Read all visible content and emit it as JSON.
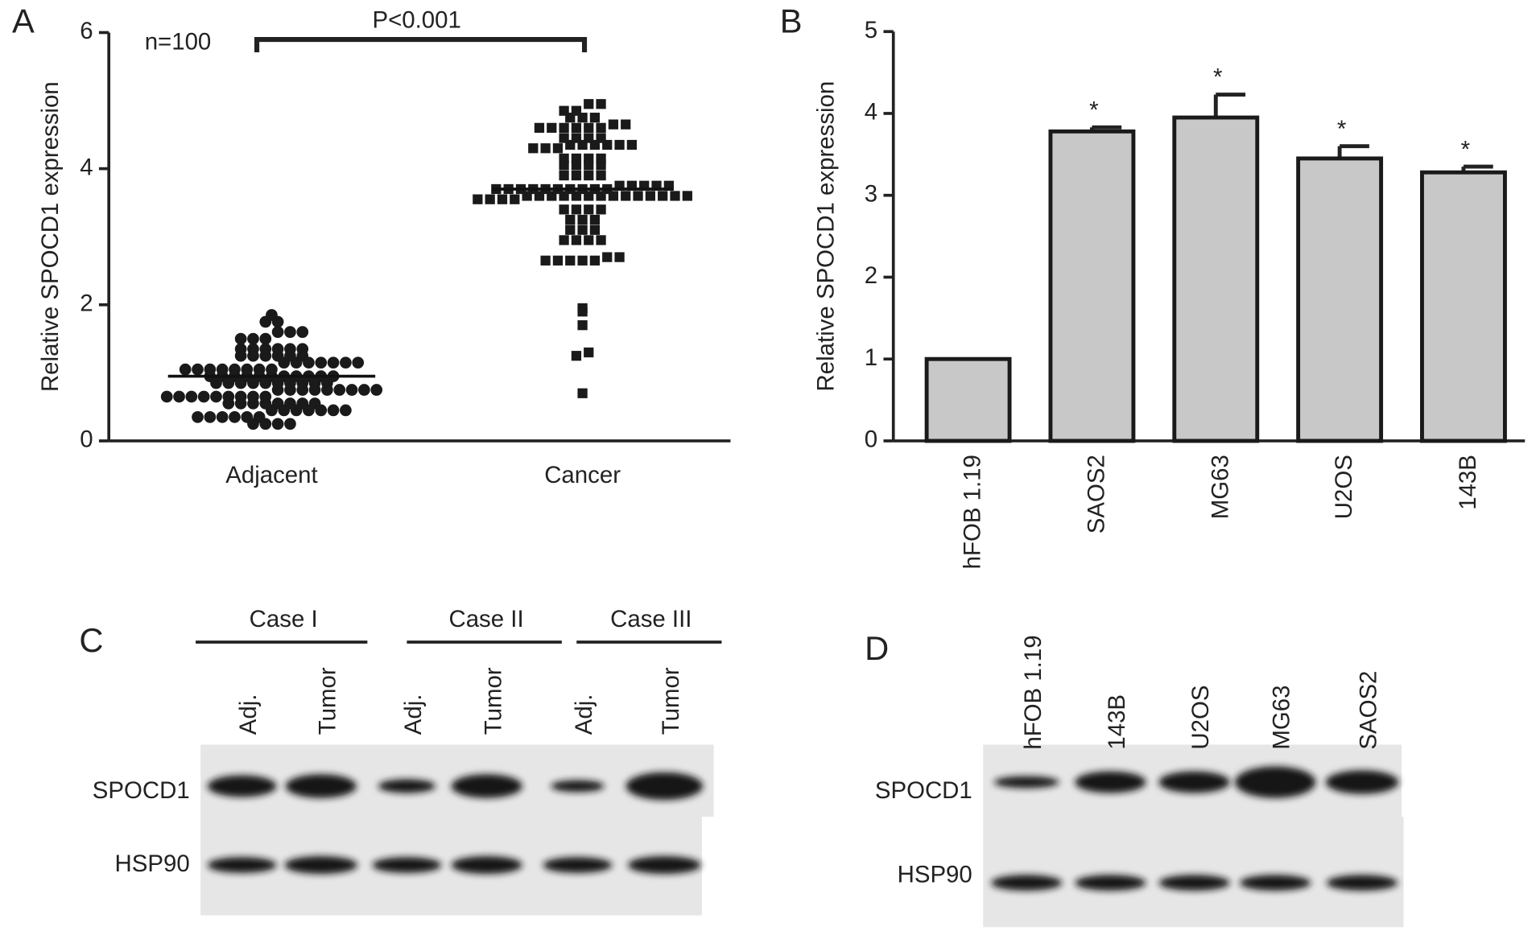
{
  "chart_data": [
    {
      "type": "dotplot",
      "panel": "A",
      "ylabel": "Relative SPOCD1 expression",
      "categories": [
        "Adjacent",
        "Cancer"
      ],
      "markers": [
        "circle",
        "square"
      ],
      "color": "#1a1a1a",
      "values": [
        [
          0.25,
          0.25,
          0.25,
          0.25,
          0.35,
          0.35,
          0.35,
          0.35,
          0.35,
          0.35,
          0.45,
          0.45,
          0.45,
          0.45,
          0.45,
          0.45,
          0.45,
          0.55,
          0.55,
          0.55,
          0.55,
          0.55,
          0.55,
          0.55,
          0.55,
          0.65,
          0.65,
          0.65,
          0.65,
          0.65,
          0.65,
          0.65,
          0.65,
          0.65,
          0.75,
          0.75,
          0.75,
          0.75,
          0.75,
          0.75,
          0.75,
          0.75,
          0.75,
          0.85,
          0.85,
          0.85,
          0.85,
          0.85,
          0.85,
          0.85,
          0.85,
          0.85,
          0.85,
          0.95,
          0.95,
          0.95,
          0.95,
          0.95,
          0.95,
          0.95,
          0.95,
          0.95,
          0.95,
          0.95,
          1.05,
          1.05,
          1.05,
          1.05,
          1.05,
          1.05,
          1.05,
          1.05,
          1.15,
          1.15,
          1.15,
          1.15,
          1.15,
          1.15,
          1.15,
          1.25,
          1.25,
          1.25,
          1.25,
          1.25,
          1.25,
          1.35,
          1.35,
          1.35,
          1.35,
          1.35,
          1.35,
          1.5,
          1.5,
          1.5,
          1.6,
          1.6,
          1.6,
          1.75,
          1.75,
          1.85
        ],
        [
          0.7,
          1.25,
          1.3,
          1.7,
          1.9,
          1.95,
          2.65,
          2.65,
          2.65,
          2.65,
          2.65,
          2.7,
          2.7,
          2.95,
          2.95,
          2.95,
          2.95,
          3.1,
          3.1,
          3.1,
          3.25,
          3.25,
          3.25,
          3.4,
          3.4,
          3.4,
          3.4,
          3.55,
          3.55,
          3.55,
          3.55,
          3.6,
          3.6,
          3.6,
          3.6,
          3.6,
          3.6,
          3.6,
          3.6,
          3.6,
          3.6,
          3.6,
          3.6,
          3.6,
          3.6,
          3.7,
          3.7,
          3.7,
          3.7,
          3.7,
          3.7,
          3.7,
          3.7,
          3.7,
          3.7,
          3.75,
          3.75,
          3.75,
          3.75,
          3.75,
          3.9,
          3.9,
          3.9,
          3.9,
          4.05,
          4.05,
          4.05,
          4.05,
          4.15,
          4.15,
          4.15,
          4.15,
          4.3,
          4.3,
          4.3,
          4.35,
          4.35,
          4.35,
          4.35,
          4.35,
          4.35,
          4.45,
          4.45,
          4.45,
          4.45,
          4.6,
          4.6,
          4.6,
          4.6,
          4.6,
          4.6,
          4.65,
          4.65,
          4.75,
          4.75,
          4.75,
          4.85,
          4.85,
          4.95,
          4.95
        ]
      ],
      "means": [
        0.95,
        3.7
      ],
      "annotation": "n=100",
      "bracket_label": "P<0.001",
      "ylim": [
        0,
        6
      ],
      "yticks": [
        0,
        2,
        4,
        6
      ]
    },
    {
      "type": "bar",
      "panel": "B",
      "ylabel": "Relative SPOCD1 expression",
      "categories": [
        "hFOB 1.19",
        "SAOS2",
        "MG63",
        "U2OS",
        "143B"
      ],
      "values": [
        1,
        3.78,
        3.95,
        3.45,
        3.28
      ],
      "errors": [
        0,
        0.05,
        0.28,
        0.15,
        0.07
      ],
      "significance": [
        null,
        "*",
        "*",
        "*",
        "*"
      ],
      "color": "#c8c8c8",
      "ylim": [
        0,
        5
      ],
      "yticks": [
        0,
        1,
        2,
        3,
        4,
        5
      ]
    }
  ],
  "blots": [
    {
      "panel": "C",
      "groups": [
        "Case I",
        "Case II",
        "Case III"
      ],
      "lanes": [
        "Adj.",
        "Tumor",
        "Adj.",
        "Tumor",
        "Adj.",
        "Tumor"
      ],
      "rows": [
        "SPOCD1",
        "HSP90"
      ]
    },
    {
      "panel": "D",
      "lanes": [
        "hFOB 1.19",
        "143B",
        "U2OS",
        "MG63",
        "SAOS2"
      ],
      "rows": [
        "SPOCD1",
        "HSP90"
      ]
    }
  ]
}
